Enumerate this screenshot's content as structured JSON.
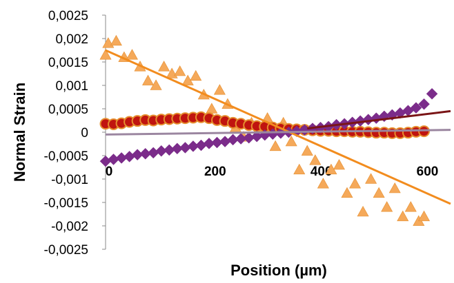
{
  "chart_data": {
    "type": "scatter",
    "title": "",
    "xlabel": "Position (µm)",
    "ylabel": "Normal Strain",
    "xlim": [
      0,
      650
    ],
    "ylim": [
      -0.0025,
      0.0025
    ],
    "x_ticks": [
      0,
      200,
      400,
      600
    ],
    "x_tick_labels": [
      "0",
      "200",
      "400",
      "600"
    ],
    "y_ticks": [
      0.0025,
      0.002,
      0.0015,
      0.001,
      0.0005,
      0,
      -0.0005,
      -0.001,
      -0.0015,
      -0.002,
      -0.0025
    ],
    "y_tick_labels": [
      "0,0025",
      "0,002",
      "0,0015",
      "0,001",
      "0,0005",
      "0",
      "-0,0005",
      "-0,001",
      "-0,0015",
      "-0,002",
      "-0,0025"
    ],
    "grid": false,
    "legend": "none",
    "series": [
      {
        "marker": "triangle",
        "color": "#F5A95A",
        "edge_color": "#E58E2E",
        "x": [
          0,
          5,
          20,
          35,
          50,
          65,
          80,
          95,
          110,
          125,
          140,
          155,
          170,
          185,
          200,
          215,
          230,
          245,
          260,
          275,
          290,
          305,
          320,
          335,
          350,
          365,
          380,
          395,
          410,
          425,
          440,
          455,
          470,
          485,
          500,
          515,
          530,
          545,
          560,
          575,
          590,
          600
        ],
        "y": [
          0.00165,
          0.0019,
          0.00195,
          0.0016,
          0.00165,
          0.0014,
          0.0011,
          0.001,
          0.0014,
          0.00125,
          0.0013,
          0.0011,
          0.0012,
          0.0008,
          0.0005,
          0.0009,
          0.0006,
          0.0001,
          -0.0001,
          0.0002,
          0.0001,
          0.0003,
          -0.0003,
          0.0002,
          -0.0002,
          -0.0008,
          -0.0004,
          -0.0006,
          -0.0011,
          -0.0008,
          -0.0007,
          -0.0013,
          -0.0011,
          -0.0017,
          -0.001,
          -0.0013,
          -0.0016,
          -0.0012,
          -0.0018,
          -0.0016,
          -0.0019,
          -0.0018
        ]
      },
      {
        "marker": "circle",
        "color": "#C0140F",
        "edge_color": "#E58E2E",
        "x": [
          0,
          15,
          30,
          45,
          60,
          75,
          90,
          105,
          120,
          135,
          150,
          165,
          180,
          195,
          210,
          225,
          240,
          255,
          270,
          285,
          300,
          315,
          330,
          345,
          360,
          375,
          390,
          405,
          420,
          435,
          450,
          465,
          480,
          495,
          510,
          525,
          540,
          555,
          570,
          585,
          600
        ],
        "y": [
          0.00018,
          0.00017,
          0.00019,
          0.00022,
          0.00024,
          0.00026,
          0.00025,
          0.00027,
          0.00028,
          0.00029,
          0.0003,
          0.00031,
          0.00032,
          0.0003,
          0.00026,
          0.00024,
          0.0002,
          0.00018,
          0.00015,
          0.00013,
          0.00012,
          0.0001,
          8e-05,
          7e-05,
          6e-05,
          5e-05,
          4e-05,
          3e-05,
          3e-05,
          2e-05,
          2e-05,
          1e-05,
          1e-05,
          0.0,
          -1e-05,
          -1e-05,
          -2e-05,
          -2e-05,
          -1e-05,
          1e-05,
          2e-05
        ]
      },
      {
        "marker": "diamond",
        "color": "#7B2C8A",
        "x": [
          0,
          15,
          30,
          45,
          60,
          75,
          90,
          105,
          120,
          135,
          150,
          165,
          180,
          195,
          210,
          225,
          240,
          255,
          270,
          285,
          300,
          315,
          330,
          345,
          360,
          375,
          390,
          405,
          420,
          435,
          450,
          465,
          480,
          495,
          510,
          525,
          540,
          555,
          570,
          585,
          600,
          615
        ],
        "y": [
          -0.00062,
          -0.00058,
          -0.00055,
          -0.00052,
          -0.00048,
          -0.00046,
          -0.00044,
          -0.0004,
          -0.00038,
          -0.00035,
          -0.00033,
          -0.0003,
          -0.00028,
          -0.00024,
          -0.00022,
          -0.0002,
          -0.00016,
          -0.00014,
          -0.00012,
          -9e-05,
          -6e-05,
          -4e-05,
          -2e-05,
          0.0,
          2e-05,
          5e-05,
          8e-05,
          0.0001,
          0.00012,
          0.00016,
          0.00018,
          0.00021,
          0.00024,
          0.00027,
          0.0003,
          0.00034,
          0.00037,
          0.00041,
          0.00046,
          0.00052,
          0.0006,
          0.00082
        ]
      }
    ],
    "trendlines": [
      {
        "color": "#F28C1E",
        "x": [
          0,
          650
        ],
        "y": [
          0.00175,
          -0.00153
        ]
      },
      {
        "color": "#7A1416",
        "x": [
          380,
          650
        ],
        "y": [
          8e-05,
          0.00045
        ]
      },
      {
        "color": "#9B86A0",
        "x": [
          0,
          650
        ],
        "y": [
          -5e-05,
          5e-05
        ]
      }
    ]
  }
}
